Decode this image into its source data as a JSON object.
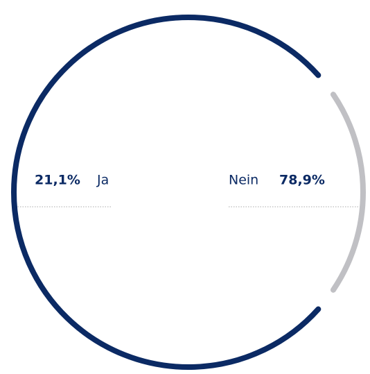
{
  "chart_data": {
    "type": "pie",
    "categories": [
      "Ja",
      "Nein"
    ],
    "values": [
      21.1,
      78.9
    ],
    "value_labels": [
      "21,1%",
      "78,9%"
    ],
    "colors": [
      "#c0c0c4",
      "#0b2a64"
    ]
  }
}
